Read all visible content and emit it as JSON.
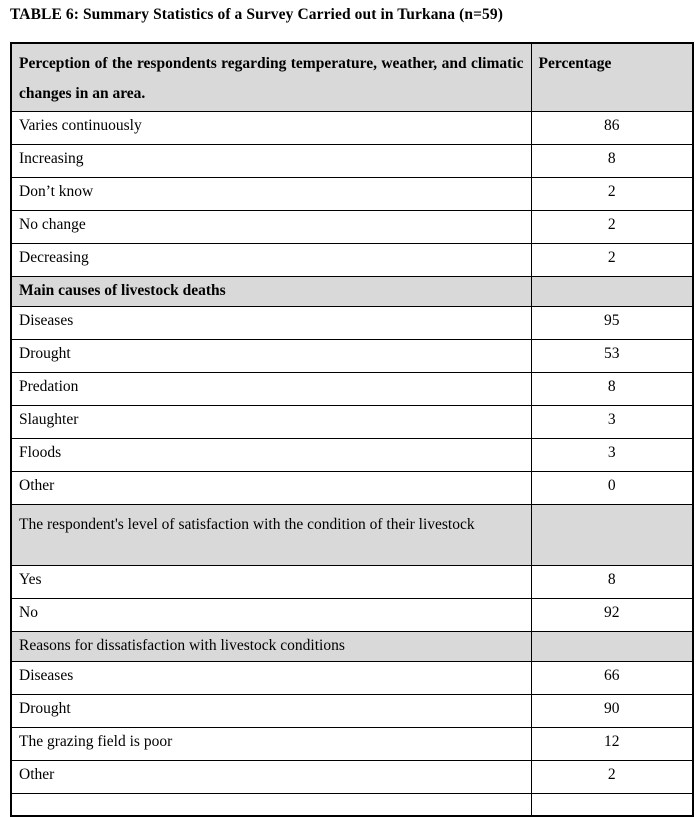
{
  "page": {
    "title": "TABLE 6: Summary Statistics of a Survey Carried out in Turkana (n=59)"
  },
  "colors": {
    "section_fill": "#d9d9d9",
    "border": "#000000",
    "text": "#000000"
  },
  "table": {
    "rows": [
      {
        "type": "header",
        "label": "Perception of the respondents regarding temperature, weather, and climatic changes in an area.",
        "value": "Percentage"
      },
      {
        "type": "data",
        "label": "Varies continuously",
        "value": "86"
      },
      {
        "type": "data",
        "label": "Increasing",
        "value": "8"
      },
      {
        "type": "data",
        "label": "Don’t know",
        "value": "2"
      },
      {
        "type": "data",
        "label": "No change",
        "value": "2"
      },
      {
        "type": "data",
        "label": "Decreasing",
        "value": "2"
      },
      {
        "type": "section_bold",
        "label": "Main causes of livestock deaths",
        "value": ""
      },
      {
        "type": "data",
        "label": "Diseases",
        "value": "95"
      },
      {
        "type": "data",
        "label": "Drought",
        "value": "53"
      },
      {
        "type": "data",
        "label": "Predation",
        "value": "8"
      },
      {
        "type": "data",
        "label": "Slaughter",
        "value": "3"
      },
      {
        "type": "data",
        "label": "Floods",
        "value": "3"
      },
      {
        "type": "data",
        "label": "Other",
        "value": "0"
      },
      {
        "type": "section_tall",
        "label": "The respondent's level of satisfaction with the condition of their livestock",
        "value": ""
      },
      {
        "type": "data",
        "label": "Yes",
        "value": "8"
      },
      {
        "type": "data",
        "label": "No",
        "value": "92"
      },
      {
        "type": "section",
        "label": "Reasons for dissatisfaction with livestock conditions",
        "value": ""
      },
      {
        "type": "data",
        "label": "Diseases",
        "value": "66"
      },
      {
        "type": "data",
        "label": "Drought",
        "value": "90"
      },
      {
        "type": "data",
        "label": "The grazing field is poor",
        "value": "12"
      },
      {
        "type": "data",
        "label": "Other",
        "value": "2"
      },
      {
        "type": "spacer",
        "label": "",
        "value": ""
      }
    ]
  }
}
